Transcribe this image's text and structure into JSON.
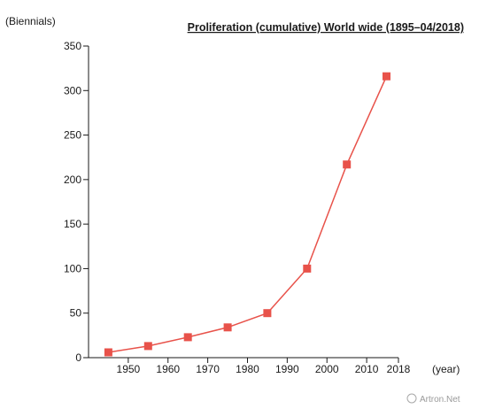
{
  "chart_data": {
    "type": "line",
    "title": "Proliferation (cumulative) World wide (1895–04/2018)",
    "ylabel": "(Biennials)",
    "xlabel": "(year)",
    "ylim": [
      0,
      350
    ],
    "yticks": [
      "0",
      "50",
      "100",
      "150",
      "200",
      "250",
      "300",
      "350"
    ],
    "xlim": [
      1940,
      2018
    ],
    "xticks": [
      "1950",
      "1960",
      "1970",
      "1980",
      "1990",
      "2000",
      "2010",
      "2018"
    ],
    "series": [
      {
        "x": [
          1945,
          1955,
          1965,
          1975,
          1985,
          1995,
          2005,
          2015
        ],
        "values": [
          6,
          13,
          23,
          34,
          50,
          100,
          217,
          316
        ],
        "color": "#e8524a"
      }
    ],
    "grid": false,
    "legend": "none"
  },
  "watermark": {
    "text": "Artron.Net"
  }
}
